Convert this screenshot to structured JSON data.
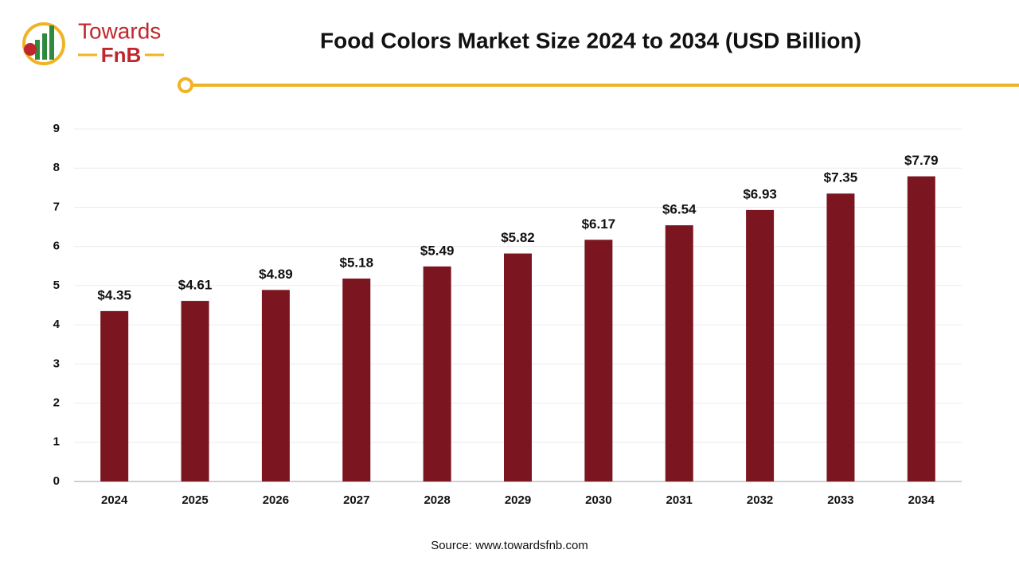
{
  "logo": {
    "line1": "Towards",
    "line2": "FnB"
  },
  "chart_data": {
    "type": "bar",
    "title": "Food Colors Market Size 2024 to 2034 (USD Billion)",
    "categories": [
      "2024",
      "2025",
      "2026",
      "2027",
      "2028",
      "2029",
      "2030",
      "2031",
      "2032",
      "2033",
      "2034"
    ],
    "values": [
      4.35,
      4.61,
      4.89,
      5.18,
      5.49,
      5.82,
      6.17,
      6.54,
      6.93,
      7.35,
      7.79
    ],
    "value_labels": [
      "$4.35",
      "$4.61",
      "$4.89",
      "$5.18",
      "$5.49",
      "$5.82",
      "$6.17",
      "$6.54",
      "$6.93",
      "$7.35",
      "$7.79"
    ],
    "color": "#7b1520",
    "ylim": [
      0,
      9
    ],
    "yticks": [
      0,
      1,
      2,
      3,
      4,
      5,
      6,
      7,
      8,
      9
    ],
    "grid": true
  },
  "source": "Source: www.towardsfnb.com"
}
